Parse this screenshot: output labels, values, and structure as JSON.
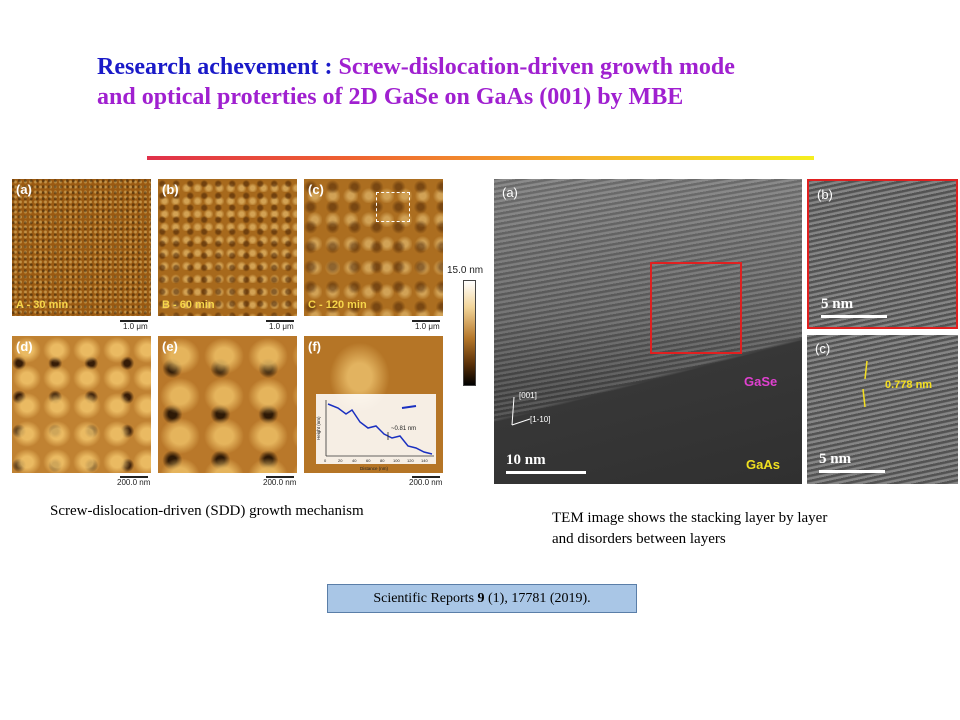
{
  "title": {
    "prefix": "Research achevement : ",
    "line1_rest": "Screw-dislocation-driven growth mode",
    "line2": "and optical proterties of  2D GaSe on GaAs (001) by MBE"
  },
  "afm": {
    "panels": [
      {
        "label": "(a)",
        "caption": "A - 30 min",
        "scale": "1.0 μm"
      },
      {
        "label": "(b)",
        "caption": "B - 60 min",
        "scale": "1.0 μm"
      },
      {
        "label": "(c)",
        "caption": "C - 120 min",
        "scale": "1.0 μm"
      },
      {
        "label": "(d)",
        "caption": "",
        "scale": ""
      },
      {
        "label": "(e)",
        "caption": "",
        "scale": ""
      },
      {
        "label": "(f)",
        "caption": "",
        "scale": "200.0 nm"
      }
    ],
    "bottom_scales": [
      "200.0 nm",
      "200.0 nm",
      "200.0 nm"
    ],
    "colorbar_label": "15.0 nm",
    "profile": {
      "step_label": "~0.81 nm",
      "xlabel": "Distance (nm)",
      "ylabel": "Height (nm)",
      "xticks": [
        "0",
        "20",
        "40",
        "60",
        "80",
        "100",
        "120",
        "140"
      ]
    }
  },
  "caption_left": "Screw-dislocation-driven (SDD) growth mechanism",
  "tem": {
    "a": {
      "label": "(a)",
      "gase": "GaSe",
      "gaas": "GaAs",
      "scale": "10 nm",
      "dir1": "[001]",
      "dir2": "[1-10]"
    },
    "b": {
      "label": "(b)",
      "scale": "5 nm"
    },
    "c": {
      "label": "(c)",
      "scale": "5 nm",
      "spacing": "0.778 nm"
    }
  },
  "caption_right": {
    "line1": "TEM image shows the stacking layer by layer",
    "line2": "and disorders between layers"
  },
  "reference": {
    "journal": "Scientific Reports ",
    "volume": "9",
    "rest": " (1), 17781 (2019)."
  },
  "colors": {
    "title_blue": "#1a1ac8",
    "title_purple": "#a020d0",
    "ref_box": "#a9c6e6",
    "gase_label": "#e040d0",
    "gaas_label": "#f0e020"
  }
}
